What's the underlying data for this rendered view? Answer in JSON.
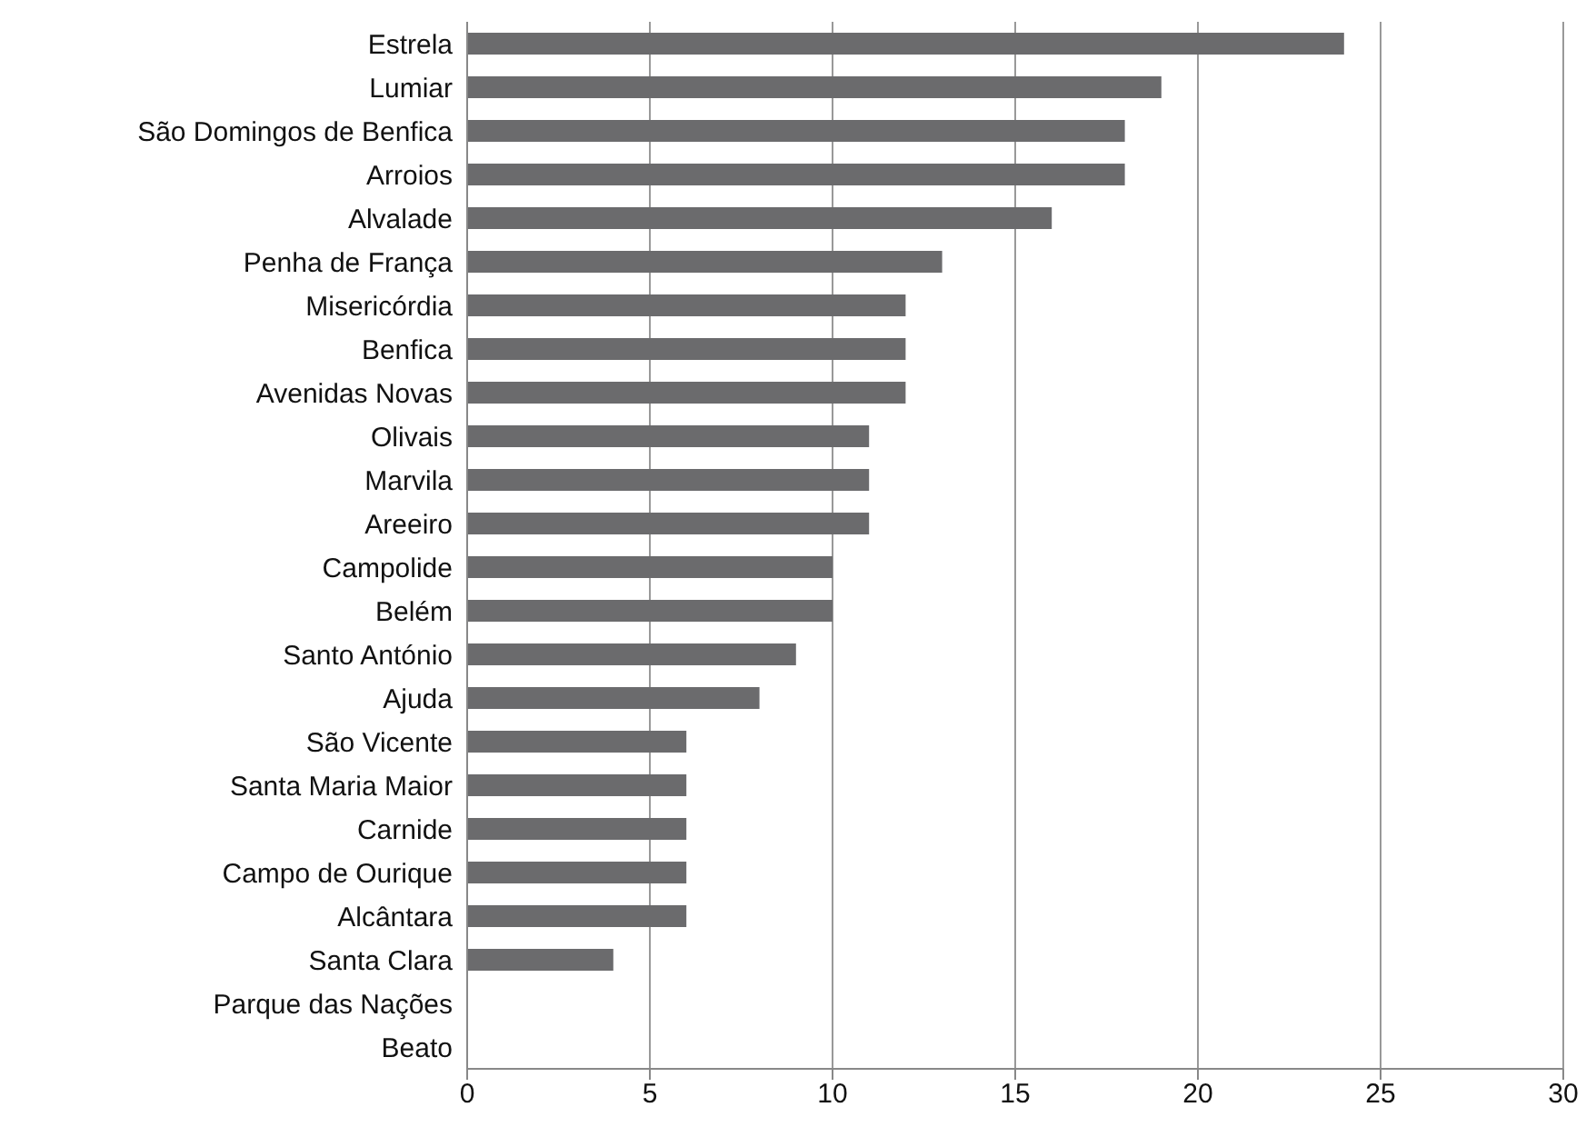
{
  "chart_data": {
    "type": "bar",
    "orientation": "horizontal",
    "categories": [
      "Estrela",
      "Lumiar",
      "São Domingos de Benfica",
      "Arroios",
      "Alvalade",
      "Penha de França",
      "Misericórdia",
      "Benfica",
      "Avenidas Novas",
      "Olivais",
      "Marvila",
      "Areeiro",
      "Campolide",
      "Belém",
      "Santo António",
      "Ajuda",
      "São Vicente",
      "Santa Maria Maior",
      "Carnide",
      "Campo de Ourique",
      "Alcântara",
      "Santa Clara",
      "Parque das Nações",
      "Beato"
    ],
    "values": [
      24,
      19,
      18,
      18,
      16,
      13,
      12,
      12,
      12,
      11,
      11,
      11,
      10,
      10,
      9,
      8,
      6,
      6,
      6,
      6,
      6,
      4,
      0,
      0
    ],
    "color": "#6b6b6d",
    "xlim": [
      0,
      30
    ],
    "xticks": [
      0,
      5,
      10,
      15,
      20,
      25,
      30
    ],
    "grid": "x",
    "legend": false
  }
}
